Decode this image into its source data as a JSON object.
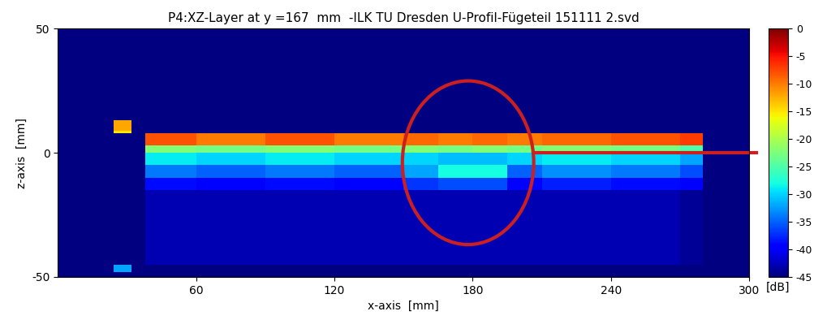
{
  "chart_data": {
    "type": "heatmap",
    "title": "P4:XZ-Layer at y =167  mm  -ILK TU Dresden U-Profil-Fügeteil 151111 2.svd",
    "x_label": "x-axis  [mm]",
    "y_label": "z-axis  [mm]",
    "color": "jet",
    "xlim": [
      0,
      300
    ],
    "ylim": [
      -50,
      50
    ],
    "xticks": [
      60,
      120,
      180,
      240,
      300
    ],
    "yticks": [
      -50,
      0,
      50
    ],
    "x_edges": [
      0,
      24,
      32,
      38,
      60,
      90,
      120,
      150,
      165,
      180,
      195,
      210,
      240,
      270,
      280,
      300
    ],
    "y_edges": [
      -50,
      -48,
      -45,
      -15,
      -10,
      -5,
      0,
      3,
      8,
      9,
      13,
      50
    ],
    "cells": [
      [
        -45,
        -45,
        -45,
        -45,
        -45,
        -45,
        -45,
        -45,
        -45,
        -45,
        -45,
        -45,
        -45,
        -45,
        -45
      ],
      [
        -45,
        -32,
        -45,
        -45,
        -45,
        -45,
        -45,
        -45,
        -45,
        -45,
        -45,
        -45,
        -45,
        -45,
        -45
      ],
      [
        -45,
        -45,
        -45,
        -43,
        -43,
        -43,
        -43,
        -43,
        -43,
        -43,
        -43,
        -43,
        -43,
        -44,
        -45
      ],
      [
        -45,
        -45,
        -45,
        -39,
        -40,
        -39,
        -40,
        -37,
        -36,
        -36,
        -40,
        -38,
        -39,
        -40,
        -45
      ],
      [
        -45,
        -45,
        -45,
        -34,
        -35,
        -34,
        -35,
        -32,
        -28,
        -28,
        -35,
        -33,
        -34,
        -36,
        -45
      ],
      [
        -45,
        -45,
        -45,
        -29,
        -30,
        -29,
        -30,
        -30,
        -31,
        -31,
        -30,
        -29,
        -30,
        -32,
        -45
      ],
      [
        -45,
        -45,
        -45,
        -22,
        -23,
        -22,
        -23,
        -22,
        -23,
        -22,
        -23,
        -22,
        -23,
        -25,
        -45
      ],
      [
        -45,
        -45,
        -45,
        -8,
        -10,
        -8,
        -10,
        -9,
        -10,
        -9,
        -10,
        -9,
        -8,
        -7,
        -45
      ],
      [
        -45,
        -15,
        -45,
        -45,
        -45,
        -45,
        -45,
        -45,
        -45,
        -45,
        -45,
        -45,
        -45,
        -45,
        -45
      ],
      [
        -45,
        -12,
        -45,
        -45,
        -45,
        -45,
        -45,
        -45,
        -45,
        -45,
        -45,
        -45,
        -45,
        -45,
        -45
      ],
      [
        -45,
        -45,
        -45,
        -45,
        -45,
        -45,
        -45,
        -45,
        -45,
        -45,
        -45,
        -45,
        -45,
        -45,
        -45
      ]
    ],
    "colorbar": {
      "label": "[dB]",
      "lim": [
        -45,
        0
      ],
      "ticks": [
        0,
        -5,
        -10,
        -15,
        -20,
        -25,
        -30,
        -35,
        -40,
        -45
      ]
    }
  }
}
